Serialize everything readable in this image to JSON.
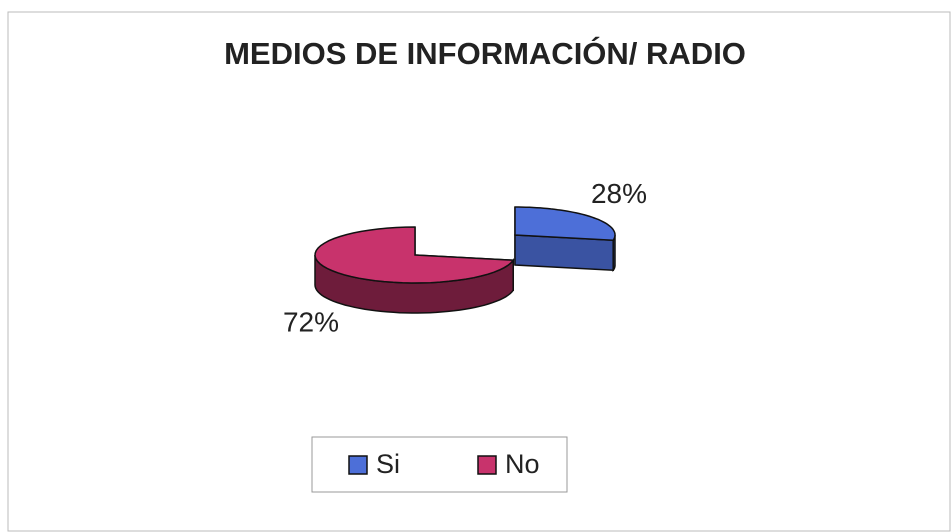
{
  "chart_data": {
    "type": "pie",
    "title": "MEDIOS DE INFORMACIÓN/ RADIO",
    "categories": [
      "Si",
      "No"
    ],
    "values": [
      28,
      72
    ],
    "value_labels": [
      "28%",
      "72%"
    ],
    "colors": [
      "#4d6fd8",
      "#c8336c"
    ],
    "legend": "bottom"
  }
}
